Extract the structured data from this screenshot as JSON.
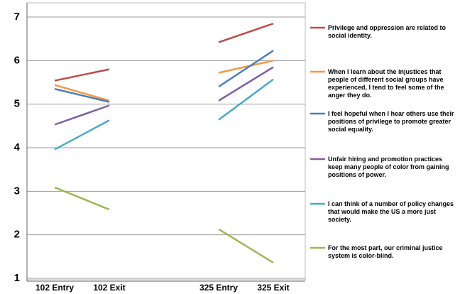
{
  "chart_data": {
    "type": "line",
    "categories": [
      "102 Entry",
      "102 Exit",
      null,
      "325 Entry",
      "325 Exit"
    ],
    "series": [
      {
        "name": "Privilege and oppression are related to social identity.",
        "color": "#be4b48",
        "values": [
          5.54,
          5.8,
          null,
          6.42,
          6.85
        ]
      },
      {
        "name": "When I learn about the injustices that people of different social groups have experienced, I tend to feel some of the anger they do.",
        "color": "#f79646",
        "values": [
          5.44,
          5.08,
          null,
          5.72,
          6.0
        ]
      },
      {
        "name": "I feel hopeful when I hear others use their positions of privilege to promote greater social equality.",
        "color": "#4a7ebb",
        "values": [
          5.35,
          5.05,
          null,
          5.4,
          6.23
        ]
      },
      {
        "name": "Unfair hiring and promotion practices keep many people of color from gaining positions of power.",
        "color": "#7d60a0",
        "values": [
          4.53,
          4.97,
          null,
          5.08,
          5.85
        ]
      },
      {
        "name": "I can think of a number of policy changes that would make the US a more just society.",
        "color": "#46aac5",
        "values": [
          3.96,
          4.63,
          null,
          4.64,
          5.57
        ]
      },
      {
        "name": "For the most part, our criminal justice system is color-blind.",
        "color": "#98b954",
        "values": [
          3.09,
          2.58,
          null,
          2.13,
          1.36
        ]
      }
    ],
    "ylim": [
      1,
      7
    ],
    "yticks": [
      1,
      2,
      3,
      4,
      5,
      6,
      7
    ],
    "grid": true,
    "legend": "right"
  }
}
